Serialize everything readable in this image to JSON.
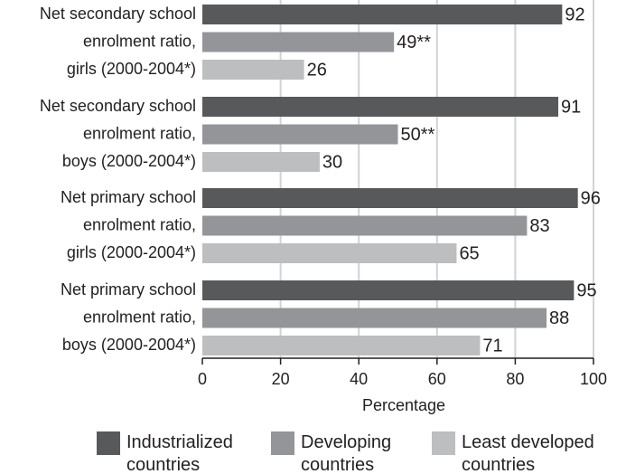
{
  "chart_data": {
    "type": "bar",
    "orientation": "horizontal",
    "categories": [
      [
        "Net secondary school",
        "enrolment ratio,",
        "girls (2000-2004*)"
      ],
      [
        "Net secondary school",
        "enrolment ratio,",
        "boys (2000-2004*)"
      ],
      [
        "Net primary school",
        "enrolment ratio,",
        "girls (2000-2004*)"
      ],
      [
        "Net primary school",
        "enrolment ratio,",
        "boys (2000-2004*)"
      ]
    ],
    "series": [
      {
        "name": "Industrialized countries",
        "color": "#58595b",
        "values": [
          92,
          91,
          96,
          95
        ]
      },
      {
        "name": "Developing countries",
        "color": "#939598",
        "values": [
          49,
          50,
          83,
          88
        ],
        "value_labels": [
          "49**",
          "50**",
          "83",
          "88"
        ]
      },
      {
        "name": "Least developed countries",
        "color": "#bcbec0",
        "values": [
          26,
          30,
          65,
          71
        ]
      }
    ],
    "xlabel": "Percentage",
    "xlim": [
      0,
      100
    ],
    "xticks": [
      0,
      20,
      40,
      60,
      80,
      100
    ],
    "grid": true
  }
}
